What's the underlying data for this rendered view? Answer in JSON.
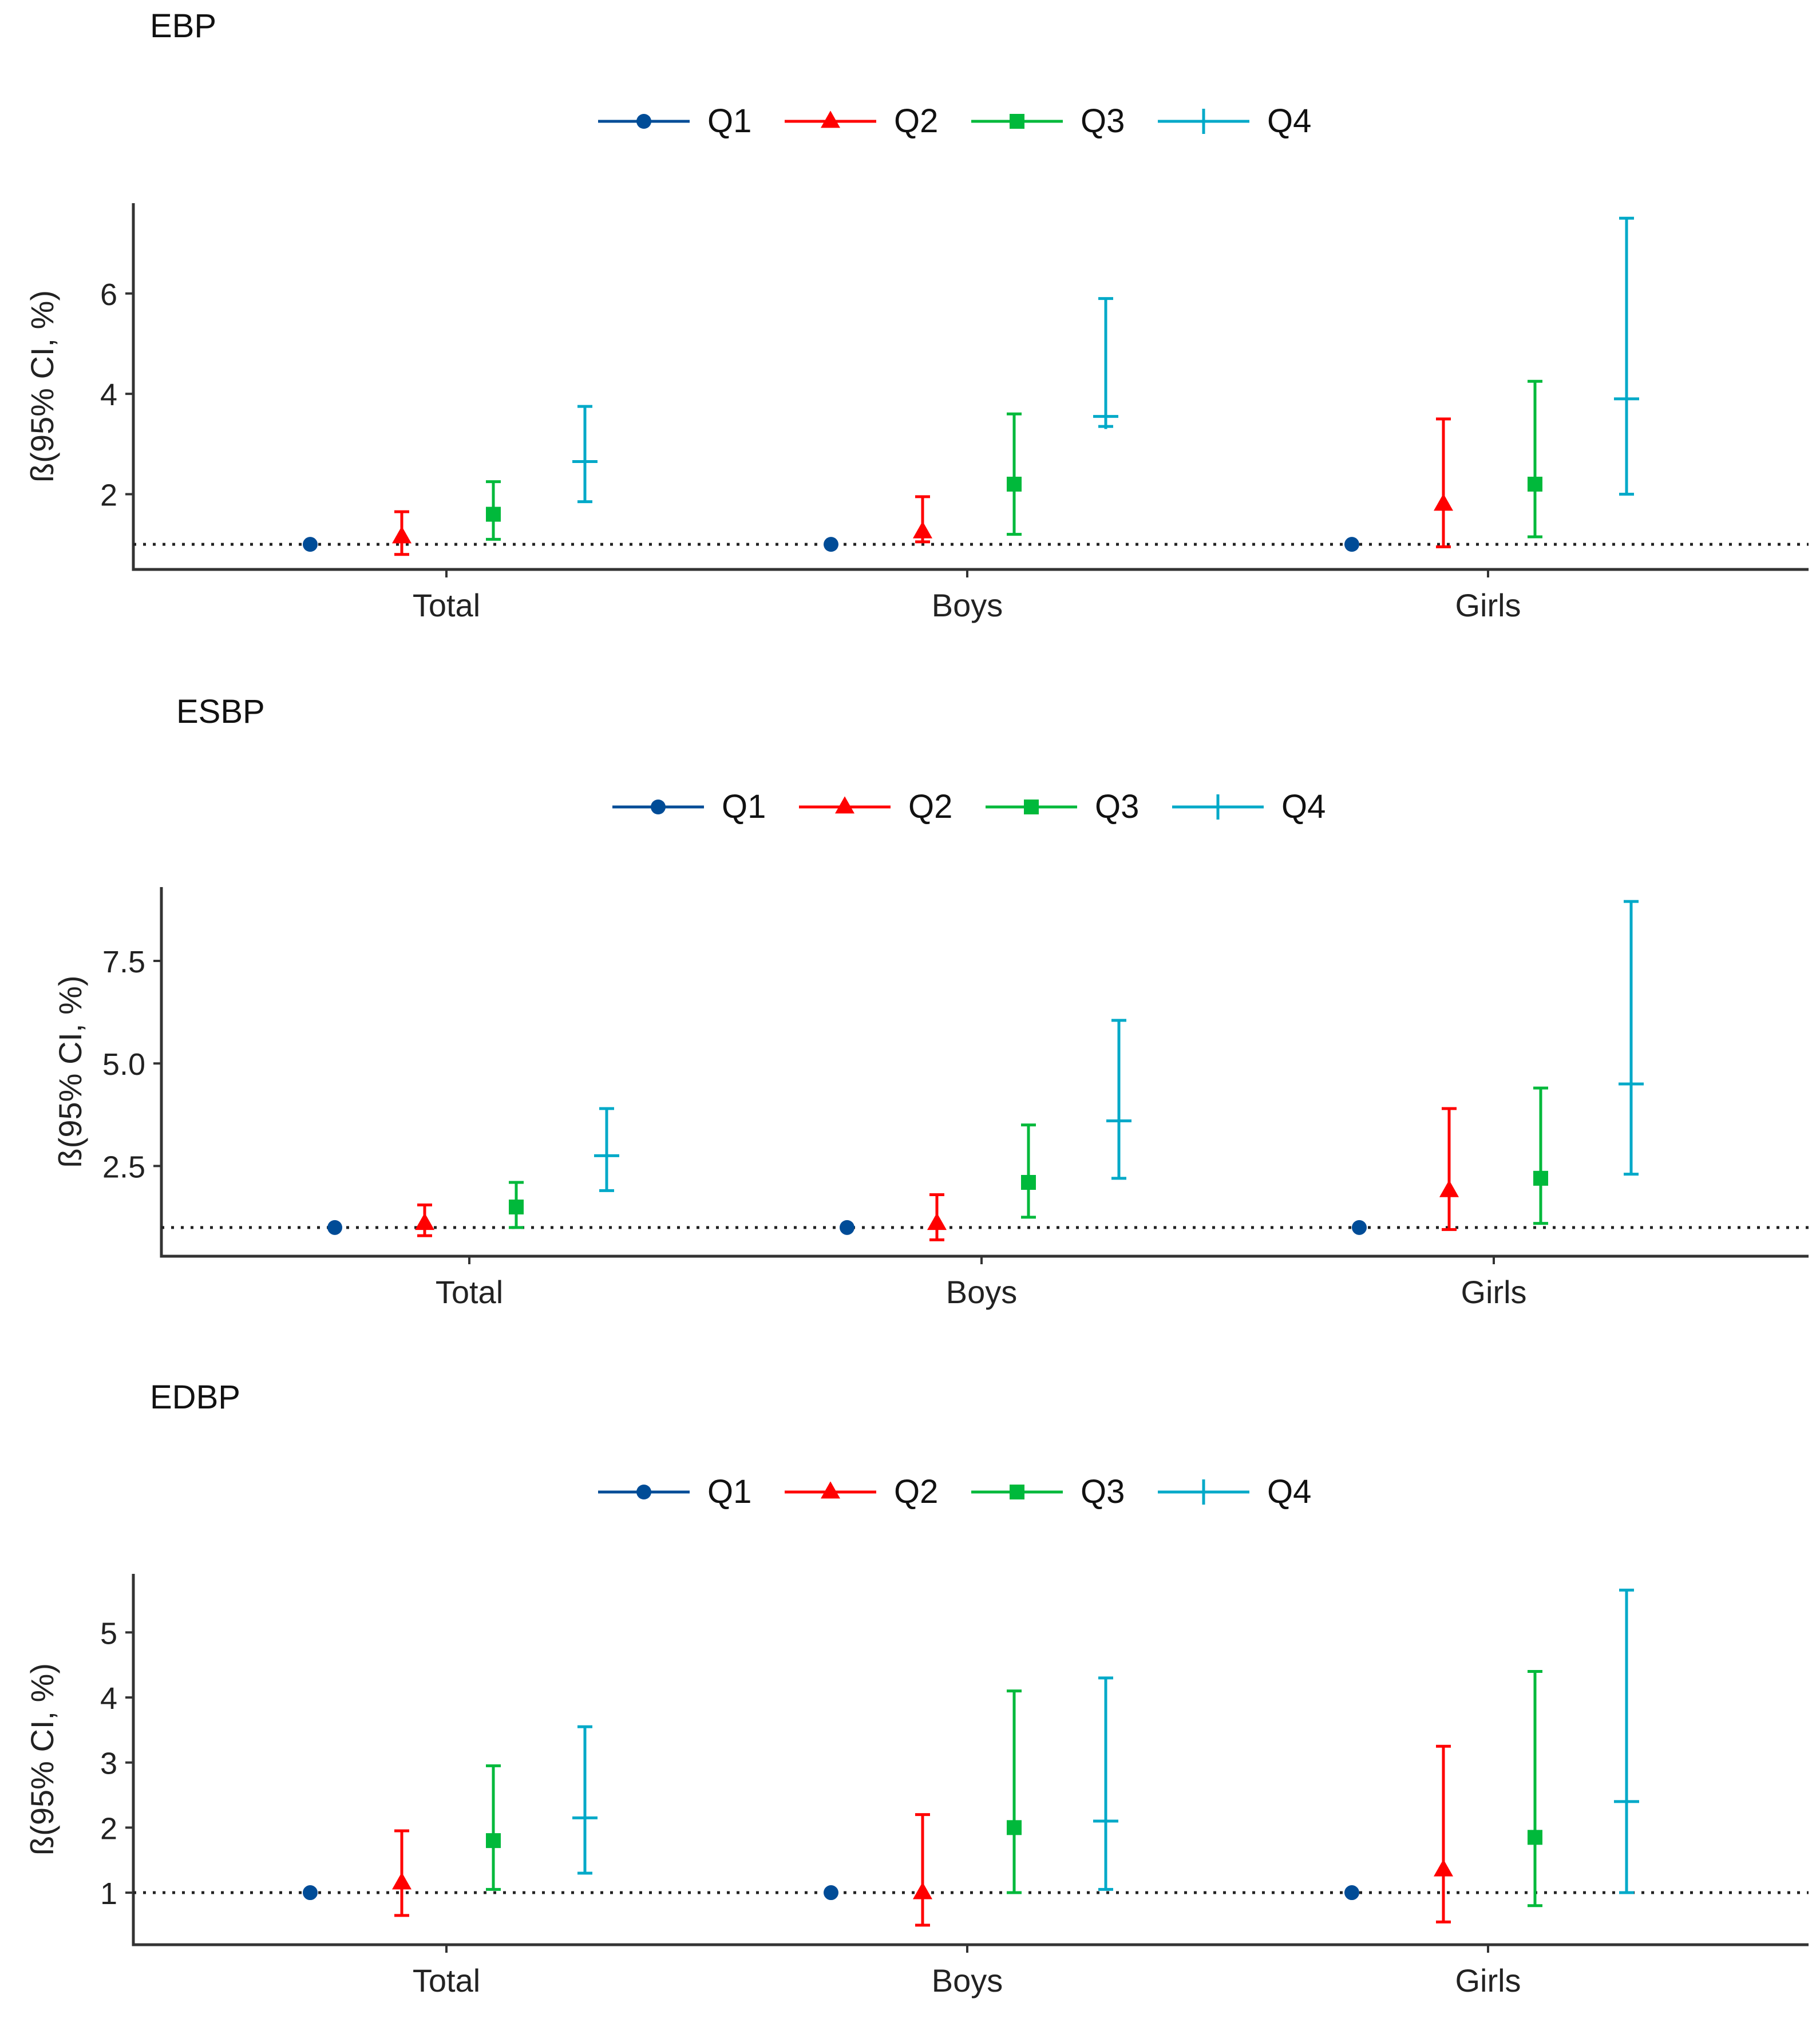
{
  "chart_data": [
    {
      "type": "errorbar",
      "title": "EBP",
      "xlabel": "",
      "ylabel": "ß(95% CI, %)",
      "categories": [
        "Total",
        "Boys",
        "Girls"
      ],
      "ylim": [
        0.5,
        7.8
      ],
      "yticks": [
        2,
        4,
        6
      ],
      "yticklabels": [
        "2",
        "4",
        "6"
      ],
      "reference_line": 1,
      "legend_position": "top",
      "series": [
        {
          "name": "Q1",
          "color": "#004C97",
          "marker": "circle",
          "values": [
            1,
            1,
            1
          ],
          "lower": [
            1,
            1,
            1
          ],
          "upper": [
            1,
            1,
            1
          ]
        },
        {
          "name": "Q2",
          "color": "#FF0000",
          "marker": "triangle",
          "values": [
            1.15,
            1.25,
            1.8
          ],
          "lower": [
            0.8,
            1.05,
            0.95
          ],
          "upper": [
            1.65,
            1.95,
            3.5
          ]
        },
        {
          "name": "Q3",
          "color": "#00B93B",
          "marker": "square",
          "values": [
            1.6,
            2.2,
            2.2
          ],
          "lower": [
            1.1,
            1.2,
            1.15
          ],
          "upper": [
            2.25,
            3.6,
            4.25
          ]
        },
        {
          "name": "Q4",
          "color": "#00A9C8",
          "marker": "cross",
          "values": [
            2.65,
            3.55,
            3.9
          ],
          "lower": [
            1.85,
            3.35,
            2.0
          ],
          "upper": [
            3.75,
            5.9,
            7.5
          ]
        }
      ]
    },
    {
      "type": "errorbar",
      "title": "ESBP",
      "xlabel": "",
      "ylabel": "ß(95% CI, %)",
      "categories": [
        "Total",
        "Boys",
        "Girls"
      ],
      "ylim": [
        0.3,
        9.3
      ],
      "yticks": [
        2.5,
        5.0,
        7.5
      ],
      "yticklabels": [
        "2.5",
        "5.0",
        "7.5"
      ],
      "reference_line": 1,
      "legend_position": "top",
      "series": [
        {
          "name": "Q1",
          "color": "#004C97",
          "marker": "circle",
          "values": [
            1,
            1,
            1
          ],
          "lower": [
            1,
            1,
            1
          ],
          "upper": [
            1,
            1,
            1
          ]
        },
        {
          "name": "Q2",
          "color": "#FF0000",
          "marker": "triangle",
          "values": [
            1.1,
            1.1,
            1.9
          ],
          "lower": [
            0.8,
            0.7,
            0.95
          ],
          "upper": [
            1.55,
            1.8,
            3.9
          ]
        },
        {
          "name": "Q3",
          "color": "#00B93B",
          "marker": "square",
          "values": [
            1.5,
            2.1,
            2.2
          ],
          "lower": [
            1.0,
            1.25,
            1.1
          ],
          "upper": [
            2.1,
            3.5,
            4.4
          ]
        },
        {
          "name": "Q4",
          "color": "#00A9C8",
          "marker": "cross",
          "values": [
            2.75,
            3.6,
            4.5
          ],
          "lower": [
            1.9,
            2.2,
            2.3
          ],
          "upper": [
            3.9,
            6.05,
            8.95
          ]
        }
      ]
    },
    {
      "type": "errorbar",
      "title": "EDBP",
      "xlabel": "",
      "ylabel": "ß(95% CI, %)",
      "categories": [
        "Total",
        "Boys",
        "Girls"
      ],
      "ylim": [
        0.2,
        5.9
      ],
      "yticks": [
        1,
        2,
        3,
        4,
        5
      ],
      "yticklabels": [
        "1",
        "2",
        "3",
        "4",
        "5"
      ],
      "reference_line": 1,
      "legend_position": "top",
      "series": [
        {
          "name": "Q1",
          "color": "#004C97",
          "marker": "circle",
          "values": [
            1,
            1,
            1
          ],
          "lower": [
            1,
            1,
            1
          ],
          "upper": [
            1,
            1,
            1
          ]
        },
        {
          "name": "Q2",
          "color": "#FF0000",
          "marker": "triangle",
          "values": [
            1.15,
            1.0,
            1.35
          ],
          "lower": [
            0.65,
            0.5,
            0.55
          ],
          "upper": [
            1.95,
            2.2,
            3.25
          ]
        },
        {
          "name": "Q3",
          "color": "#00B93B",
          "marker": "square",
          "values": [
            1.8,
            2.0,
            1.85
          ],
          "lower": [
            1.05,
            1.0,
            0.8
          ],
          "upper": [
            2.95,
            4.1,
            4.4
          ]
        },
        {
          "name": "Q4",
          "color": "#00A9C8",
          "marker": "cross",
          "values": [
            2.15,
            2.1,
            2.4
          ],
          "lower": [
            1.3,
            1.05,
            1.0
          ],
          "upper": [
            3.55,
            4.3,
            5.65
          ]
        }
      ]
    }
  ]
}
